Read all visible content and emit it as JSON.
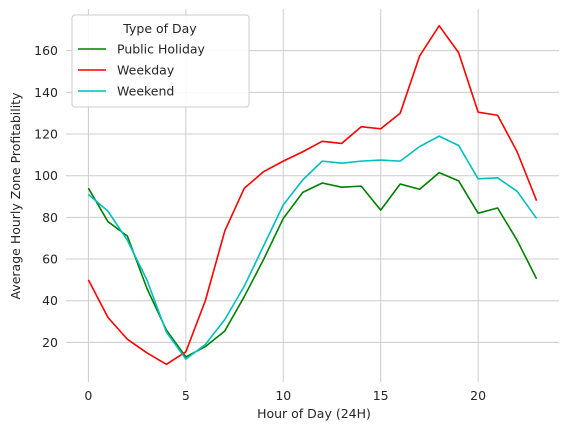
{
  "chart_data": {
    "type": "line",
    "xlabel": "Hour of Day (24H)",
    "ylabel": "Average Hourly Zone Profitability",
    "xlim": [
      -1.15,
      24.15
    ],
    "ylim": [
      1,
      180
    ],
    "x_ticks": [
      0,
      5,
      10,
      15,
      20
    ],
    "y_ticks": [
      20,
      40,
      60,
      80,
      100,
      120,
      140,
      160
    ],
    "grid": true,
    "legend": {
      "title": "Type of Day",
      "placement": "top-left"
    },
    "x": [
      0,
      1,
      2,
      3,
      4,
      5,
      6,
      7,
      8,
      9,
      10,
      11,
      12,
      13,
      14,
      15,
      16,
      17,
      18,
      19,
      20,
      21,
      22,
      23
    ],
    "series": [
      {
        "name": "Public Holiday",
        "color": "#008000",
        "values": [
          94,
          78,
          71,
          46,
          26,
          13,
          18,
          25.5,
          42,
          60,
          79.5,
          92,
          96.5,
          94.5,
          95,
          83.5,
          96,
          93.5,
          101.5,
          97.5,
          82,
          84.5,
          69,
          50.5
        ]
      },
      {
        "name": "Weekday",
        "color": "#ff0000",
        "values": [
          50,
          32,
          21.5,
          15,
          9.5,
          15.5,
          40,
          73.5,
          94,
          102,
          107,
          111.5,
          116.5,
          115.5,
          123.5,
          122.5,
          130,
          157.5,
          172,
          159,
          130.5,
          129,
          111.5,
          88
        ]
      },
      {
        "name": "Weekend",
        "color": "#00bfbf",
        "values": [
          91,
          83,
          69,
          50,
          25,
          12,
          19,
          31,
          47,
          66.5,
          86,
          98,
          107,
          106,
          107,
          107.5,
          107,
          114,
          119,
          114.5,
          98.5,
          99,
          92.5,
          79.5
        ]
      }
    ]
  }
}
